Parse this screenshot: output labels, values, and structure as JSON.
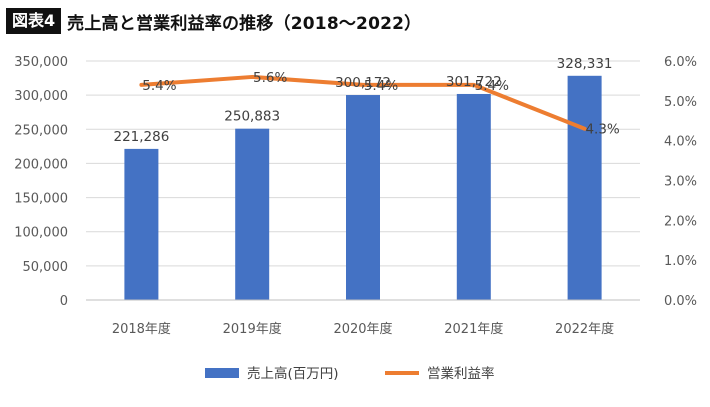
{
  "header": {
    "badge": "図表4",
    "title": "売上高と営業利益率の推移（2018〜2022）"
  },
  "colors": {
    "bar": "#4472C4",
    "line": "#ED7D31",
    "grid": "#d9d9d9",
    "axis_text": "#595959"
  },
  "chart_data": {
    "type": "bar",
    "categories": [
      "2018年度",
      "2019年度",
      "2020年度",
      "2021年度",
      "2022年度"
    ],
    "series": [
      {
        "name": "売上高(百万円)",
        "type": "bar",
        "axis": "left",
        "values": [
          221286,
          250883,
          300172,
          301722,
          328331
        ],
        "labels": [
          "221,286",
          "250,883",
          "300,172",
          "301,722",
          "328,331"
        ]
      },
      {
        "name": "営業利益率",
        "type": "line",
        "axis": "right",
        "values": [
          5.4,
          5.6,
          5.4,
          5.4,
          4.3
        ],
        "labels": [
          "5.4%",
          "5.6%",
          "5.4%",
          "5.4%",
          "4.3%"
        ]
      }
    ],
    "y_left": {
      "min": 0,
      "max": 350000,
      "ticks": [
        "0",
        "50,000",
        "100,000",
        "150,000",
        "200,000",
        "250,000",
        "300,000",
        "350,000"
      ]
    },
    "y_right": {
      "min": 0,
      "max": 6.0,
      "ticks": [
        "0.0%",
        "1.0%",
        "2.0%",
        "3.0%",
        "4.0%",
        "5.0%",
        "6.0%"
      ]
    },
    "grid": true,
    "legend_position": "bottom"
  }
}
